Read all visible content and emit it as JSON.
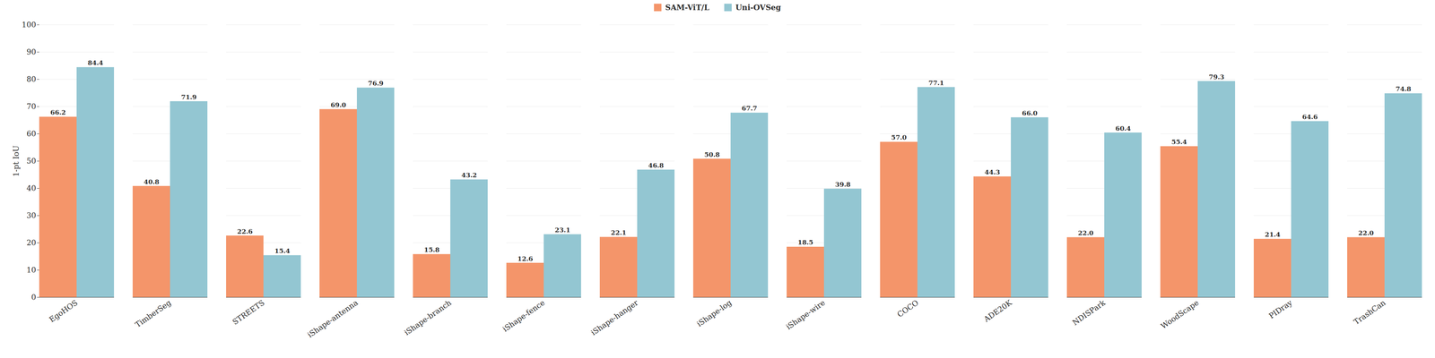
{
  "chart_data": {
    "type": "bar",
    "categories": [
      "EgoHOS",
      "TimberSeg",
      "STREETS",
      "iShape-antenna",
      "iShape-branch",
      "iShape-fence",
      "iShape-hanger",
      "iShape-log",
      "iShape-wire",
      "COCO",
      "ADE20K",
      "NDISPark",
      "WoodScape",
      "PIDray",
      "TrashCan"
    ],
    "series": [
      {
        "name": "SAM-ViT/L",
        "color": "#F4956A",
        "values": [
          66.2,
          40.8,
          22.6,
          69.0,
          15.8,
          12.6,
          22.1,
          50.8,
          18.5,
          57.0,
          44.3,
          22.0,
          55.4,
          21.4,
          22.0
        ],
        "value_labels": [
          "66.2",
          "40.8",
          "22.6",
          "69.0",
          "15.8",
          "12.6",
          "22.1",
          "50.8",
          "18.5",
          "57.0",
          "44.3",
          "22.0",
          "55.4",
          "21.4",
          "22.0"
        ]
      },
      {
        "name": "Uni-OVSeg",
        "color": "#93C6D2",
        "values": [
          84.4,
          71.9,
          15.4,
          76.9,
          43.2,
          23.1,
          46.8,
          67.7,
          39.8,
          77.1,
          66.0,
          60.4,
          79.3,
          64.6,
          74.8
        ],
        "value_labels": [
          "84.4",
          "71.9",
          "15.4",
          "76.9",
          "43.2",
          "23.1",
          "46.8",
          "67.7",
          "39.8",
          "77.1",
          "66.0",
          "60.4",
          "79.3",
          "64.6",
          "74.8"
        ]
      }
    ],
    "ylabel": "1-pt IoU",
    "ylim": [
      0,
      100
    ],
    "yticks": [
      0,
      10,
      20,
      30,
      40,
      50,
      60,
      70,
      80,
      90,
      100
    ],
    "grid": true,
    "legend": "top",
    "data_labels": true
  }
}
